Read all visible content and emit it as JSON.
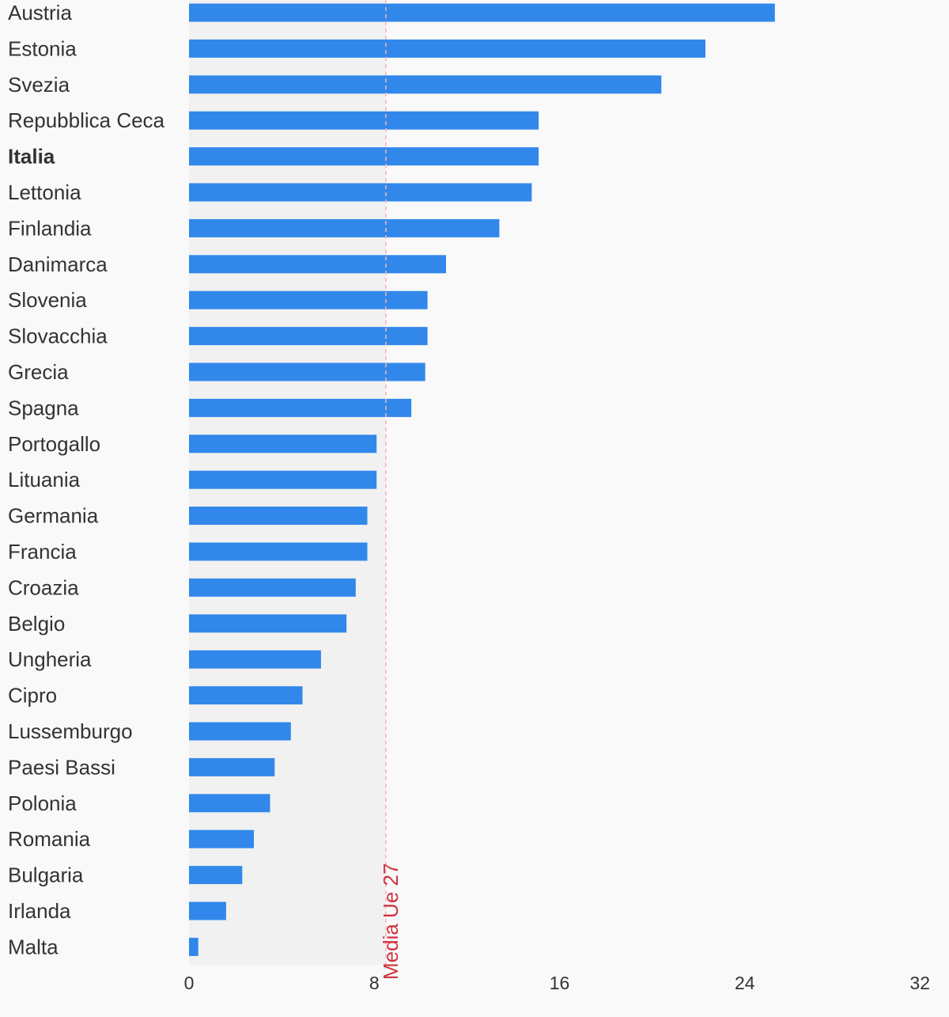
{
  "chart_data": {
    "type": "bar",
    "orientation": "horizontal",
    "categories": [
      "Austria",
      "Estonia",
      "Svezia",
      "Repubblica Ceca",
      "Italia",
      "Lettonia",
      "Finlandia",
      "Danimarca",
      "Slovenia",
      "Slovacchia",
      "Grecia",
      "Spagna",
      "Portogallo",
      "Lituania",
      "Germania",
      "Francia",
      "Croazia",
      "Belgio",
      "Ungheria",
      "Cipro",
      "Lussemburgo",
      "Paesi Bassi",
      "Polonia",
      "Romania",
      "Bulgaria",
      "Irlanda",
      "Malta"
    ],
    "values": [
      25.3,
      22.3,
      20.4,
      15.1,
      15.1,
      14.8,
      13.4,
      11.1,
      10.3,
      10.3,
      10.2,
      9.6,
      8.1,
      8.1,
      7.7,
      7.7,
      7.2,
      6.8,
      5.7,
      4.9,
      4.4,
      3.7,
      3.5,
      2.8,
      2.3,
      1.6,
      0.4
    ],
    "highlight": "Italia",
    "reference_line": {
      "label": "Media Ue 27",
      "value": 8.5
    },
    "xlim": [
      0,
      32
    ],
    "xticks": [
      "0",
      "8",
      "16",
      "24",
      "32"
    ],
    "title": "",
    "xlabel": "",
    "ylabel": "",
    "grid": false,
    "colors": {
      "bar": "#3188ea",
      "band": "#f1f1f1",
      "reference": "#d0323f",
      "reference_line": "#f5b3b8",
      "text": "#333333",
      "background": "#f9f9f9"
    }
  }
}
